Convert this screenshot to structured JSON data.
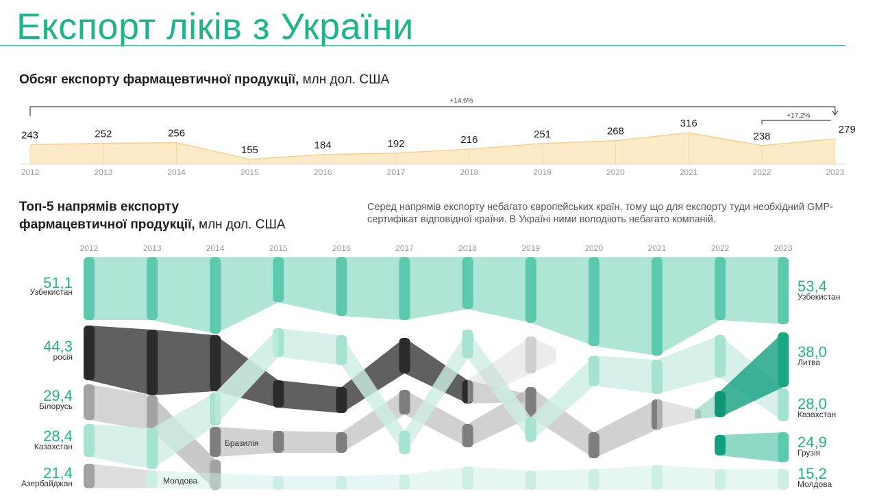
{
  "header": {
    "title": "Експорт ліків з України"
  },
  "chart1_heading": {
    "bold": "Обсяг експорту фармацевтичної продукції,",
    "light": "млн дол. США"
  },
  "chart2_heading": {
    "line1": "Топ-5 напрямів експорту",
    "line2_bold": "фармацевтичної продукції,",
    "line2_light": "млн дол. США"
  },
  "note": "Серед напрямів експорту небагато європейських країн, тому що для експорту туди необхідний GMP-сертифікат відповідної країни. В Україні ними володіють небагато компаній.",
  "colors": {
    "accent": "#1fb48c",
    "area_fill": "#fde6bd",
    "area_line": "#f7cf8f"
  },
  "chart_data": [
    {
      "type": "area",
      "x": [
        "2012",
        "2013",
        "2014",
        "2015",
        "2016",
        "2017",
        "2018",
        "2019",
        "2020",
        "2021",
        "2022",
        "2023"
      ],
      "values": [
        243,
        252,
        256,
        155,
        184,
        192,
        216,
        251,
        268,
        316,
        238,
        279
      ],
      "annotations": [
        {
          "from": "2012",
          "to": "2023",
          "text": "+14,6%"
        },
        {
          "from": "2022",
          "to": "2023",
          "text": "+17,2%"
        }
      ]
    },
    {
      "type": "sankey",
      "x": [
        "2012",
        "2013",
        "2014",
        "2015",
        "2016",
        "2017",
        "2018",
        "2019",
        "2020",
        "2021",
        "2022",
        "2023"
      ],
      "left_labels": [
        {
          "value": "51,1",
          "country": "Узбекистан"
        },
        {
          "value": "44,3",
          "country": "росія"
        },
        {
          "value": "29,4",
          "country": "Білорусь"
        },
        {
          "value": "28,4",
          "country": "Казахстан"
        },
        {
          "value": "21,4",
          "country": "Азербайджан"
        }
      ],
      "right_labels": [
        {
          "value": "53,4",
          "country": "Узбекистан"
        },
        {
          "value": "38,0",
          "country": "Литва"
        },
        {
          "value": "28,0",
          "country": "Казахстан"
        },
        {
          "value": "24,9",
          "country": "Грузія"
        },
        {
          "value": "15,2",
          "country": "Молдова"
        }
      ],
      "inline_labels": [
        "Бразилія",
        "Молдова"
      ]
    }
  ]
}
